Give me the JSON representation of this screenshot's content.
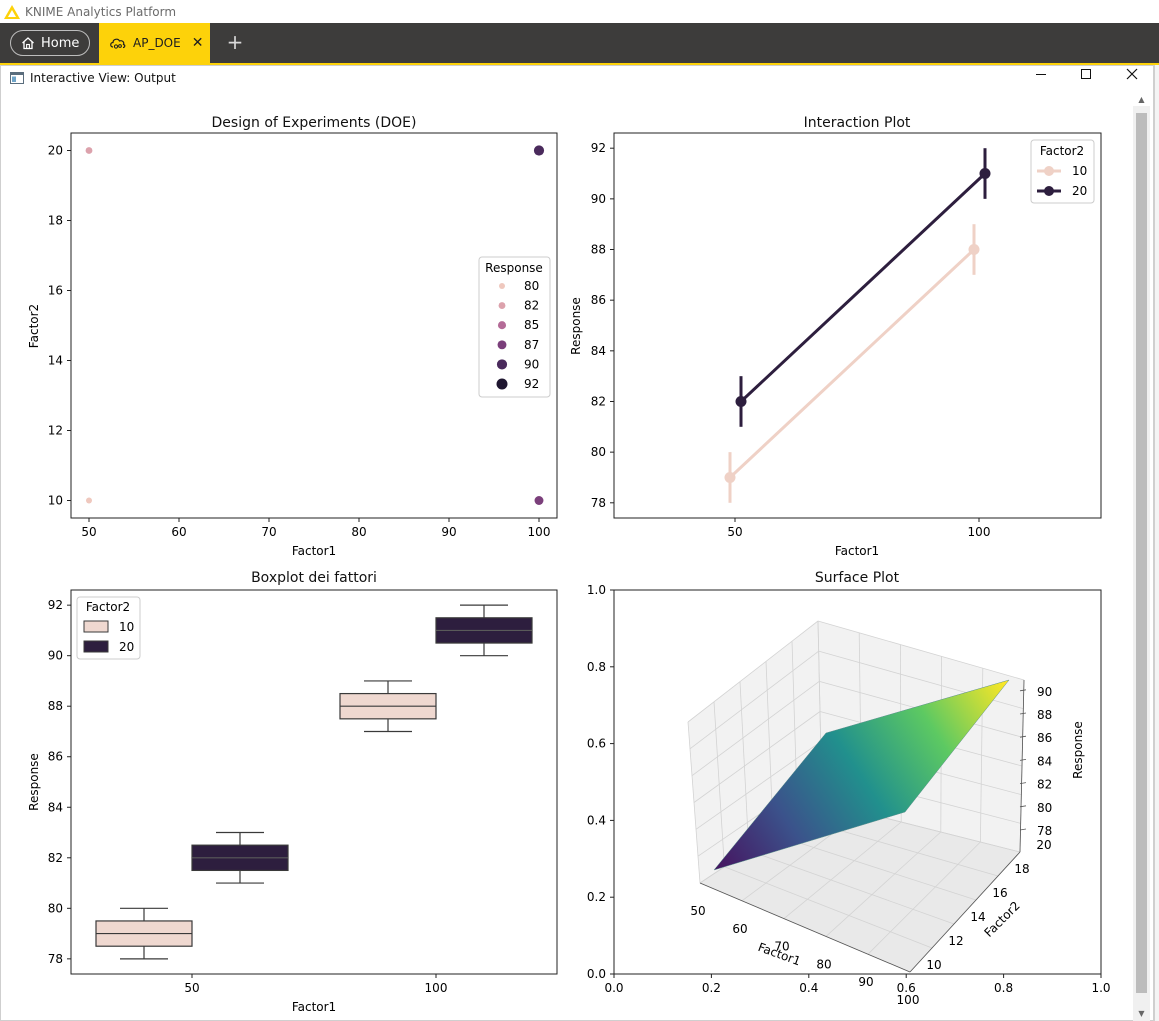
{
  "app": {
    "title": "KNIME Analytics Platform"
  },
  "tabs": {
    "home_label": "Home",
    "workflow_label": "AP_DOE",
    "close_glyph": "✕",
    "new_tab_glyph": "+"
  },
  "view": {
    "title": "Interactive View: Output",
    "minimize_glyph": "—",
    "maximize_glyph": "☐",
    "close_glyph": "✕"
  },
  "colors": {
    "knime_yellow": "#fdd20a",
    "tabbar_bg": "#3d3c3b",
    "light_series": "#efd1c6",
    "dark_series": "#2d1e3e"
  },
  "charts": {
    "doe": {
      "title": "Design of Experiments (DOE)",
      "xlabel": "Factor1",
      "ylabel": "Factor2",
      "xticks": [
        "50",
        "60",
        "70",
        "80",
        "90",
        "100"
      ],
      "yticks": [
        "10",
        "12",
        "14",
        "16",
        "18",
        "20"
      ],
      "legend_title": "Response",
      "legend_items": [
        "80",
        "82",
        "85",
        "87",
        "90",
        "92"
      ]
    },
    "interaction": {
      "title": "Interaction Plot",
      "xlabel": "Factor1",
      "ylabel": "Response",
      "xticks": [
        "50",
        "100"
      ],
      "yticks": [
        "78",
        "80",
        "82",
        "84",
        "86",
        "88",
        "90",
        "92"
      ],
      "legend_title": "Factor2",
      "legend_items": [
        "10",
        "20"
      ]
    },
    "boxplot": {
      "title": "Boxplot dei fattori",
      "xlabel": "Factor1",
      "ylabel": "Response",
      "xticks": [
        "50",
        "100"
      ],
      "yticks": [
        "78",
        "80",
        "82",
        "84",
        "86",
        "88",
        "90",
        "92"
      ],
      "legend_title": "Factor2",
      "legend_items": [
        "10",
        "20"
      ]
    },
    "surface": {
      "title": "Surface Plot",
      "xticks": [
        "0.0",
        "0.2",
        "0.4",
        "0.6",
        "0.8",
        "1.0"
      ],
      "yticks": [
        "0.0",
        "0.2",
        "0.4",
        "0.6",
        "0.8",
        "1.0"
      ],
      "x3_label": "Factor1",
      "y3_label": "Factor2",
      "z3_label": "Response",
      "x3_ticks": [
        "50",
        "60",
        "70",
        "80",
        "90",
        "100"
      ],
      "y3_ticks": [
        "10",
        "12",
        "14",
        "16",
        "18",
        "20"
      ],
      "z3_ticks": [
        "78",
        "80",
        "82",
        "84",
        "86",
        "88",
        "90"
      ]
    }
  },
  "chart_data": [
    {
      "type": "scatter",
      "title": "Design of Experiments (DOE)",
      "xlabel": "Factor1",
      "ylabel": "Factor2",
      "xlim": [
        48,
        102
      ],
      "ylim": [
        9.5,
        20.5
      ],
      "legend": "center-right",
      "legend_title": "Response",
      "points": [
        {
          "x": 50,
          "y": 10,
          "response": 80,
          "color": "#efc8be"
        },
        {
          "x": 50,
          "y": 20,
          "response": 82,
          "color": "#dca2ac"
        },
        {
          "x": 100,
          "y": 10,
          "response": 87,
          "color": "#7b3f7b"
        },
        {
          "x": 100,
          "y": 20,
          "response": 90,
          "color": "#4a2a5c"
        }
      ]
    },
    {
      "type": "line",
      "title": "Interaction Plot",
      "xlabel": "Factor1",
      "ylabel": "Response",
      "categories": [
        "50",
        "100"
      ],
      "ylim": [
        77.4,
        92.6
      ],
      "legend": "top-right",
      "legend_title": "Factor2",
      "series": [
        {
          "name": "10",
          "values": [
            79,
            88
          ],
          "ci_low": [
            78,
            87
          ],
          "ci_high": [
            80,
            89
          ],
          "color": "#efd1c6"
        },
        {
          "name": "20",
          "values": [
            82,
            91
          ],
          "ci_low": [
            81,
            90
          ],
          "ci_high": [
            83,
            92
          ],
          "color": "#2d1e3e"
        }
      ]
    },
    {
      "type": "box",
      "title": "Boxplot dei fattori",
      "xlabel": "Factor1",
      "ylabel": "Response",
      "categories": [
        "50",
        "100"
      ],
      "ylim": [
        77.4,
        92.6
      ],
      "legend": "top-left",
      "legend_title": "Factor2",
      "series": [
        {
          "name": "10",
          "color": "#efd8d0",
          "boxes": [
            {
              "min": 78,
              "q1": 78.5,
              "median": 79,
              "q3": 79.5,
              "max": 80
            },
            {
              "min": 87,
              "q1": 87.5,
              "median": 88,
              "q3": 88.5,
              "max": 89
            }
          ]
        },
        {
          "name": "20",
          "color": "#2d1e3e",
          "boxes": [
            {
              "min": 81,
              "q1": 81.5,
              "median": 82,
              "q3": 82.5,
              "max": 83
            },
            {
              "min": 90,
              "q1": 90.5,
              "median": 91,
              "q3": 91.5,
              "max": 92
            }
          ]
        }
      ]
    },
    {
      "type": "surface",
      "title": "Surface Plot",
      "x_label": "Factor1",
      "y_label": "Factor2",
      "z_label": "Response",
      "x_range": [
        50,
        100
      ],
      "y_range": [
        10,
        20
      ],
      "z_range": [
        78,
        91
      ],
      "corners": [
        {
          "x": 50,
          "y": 10,
          "z": 79
        },
        {
          "x": 100,
          "y": 10,
          "z": 88
        },
        {
          "x": 50,
          "y": 20,
          "z": 82
        },
        {
          "x": 100,
          "y": 20,
          "z": 91
        }
      ],
      "colormap": "viridis"
    }
  ]
}
